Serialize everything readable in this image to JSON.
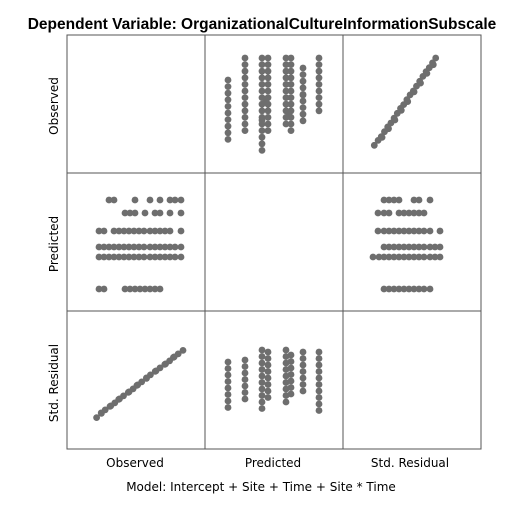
{
  "chart_data": {
    "type": "scatter",
    "subtype": "scatterplot-matrix",
    "title": "Dependent Variable: OrganizationalCultureInformationSubscale",
    "footnote": "Model: Intercept + Site + Time + Site * Time",
    "variables": [
      "Observed",
      "Predicted",
      "Std. Residual"
    ],
    "grid": false,
    "marker_color": "#6e6e6e",
    "frame_color": "#555555",
    "points": {
      "observed_vs_std_residual": {
        "observed": [
          0.1,
          0.15,
          0.19,
          0.24,
          0.29,
          0.33,
          0.38,
          0.43,
          0.48,
          0.52,
          0.57,
          0.62,
          0.66,
          0.71,
          0.76,
          0.81,
          0.86,
          0.9,
          0.95,
          1.0
        ],
        "std_residual": [
          0.02,
          0.08,
          0.13,
          0.18,
          0.23,
          0.28,
          0.33,
          0.38,
          0.43,
          0.48,
          0.53,
          0.58,
          0.63,
          0.68,
          0.73,
          0.78,
          0.83,
          0.88,
          0.93,
          0.98
        ]
      },
      "observed_vs_predicted": {
        "predicted_levels": [
          0.0,
          0.22,
          0.31,
          0.4,
          0.53,
          0.62,
          0.74,
          0.84,
          0.95
        ]
      }
    }
  }
}
